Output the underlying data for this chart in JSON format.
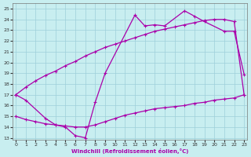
{
  "xlabel": "Windchill (Refroidissement éolien,°C)",
  "bg_color": "#c8eef0",
  "grid_color": "#9ecfda",
  "line_color": "#aa00aa",
  "xlim": [
    -0.3,
    23.3
  ],
  "ylim": [
    12.8,
    25.5
  ],
  "yticks": [
    13,
    14,
    15,
    16,
    17,
    18,
    19,
    20,
    21,
    22,
    23,
    24,
    25
  ],
  "xticks": [
    0,
    1,
    2,
    3,
    4,
    5,
    6,
    7,
    8,
    9,
    10,
    11,
    12,
    13,
    14,
    15,
    16,
    17,
    18,
    19,
    20,
    21,
    22,
    23
  ],
  "line1_x": [
    0,
    1,
    3,
    4,
    5,
    6,
    7,
    8,
    9,
    12,
    13,
    14,
    15,
    17,
    18,
    19,
    21,
    22,
    23
  ],
  "line1_y": [
    17.0,
    16.5,
    14.8,
    14.2,
    14.0,
    13.2,
    13.0,
    16.3,
    19.0,
    24.4,
    23.4,
    23.5,
    23.4,
    24.8,
    24.3,
    23.8,
    22.9,
    22.9,
    18.9
  ],
  "line2_x": [
    0,
    1,
    2,
    3,
    4,
    5,
    6,
    7,
    8,
    9,
    10,
    11,
    12,
    13,
    14,
    15,
    16,
    17,
    18,
    19,
    20,
    21,
    22,
    23
  ],
  "line2_y": [
    17.0,
    17.7,
    18.3,
    18.8,
    19.2,
    19.7,
    20.1,
    20.6,
    21.0,
    21.4,
    21.7,
    22.0,
    22.3,
    22.6,
    22.9,
    23.1,
    23.3,
    23.5,
    23.7,
    23.9,
    24.0,
    24.0,
    23.8,
    17.0
  ],
  "line3_x": [
    0,
    1,
    2,
    3,
    4,
    5,
    6,
    7,
    8,
    9,
    10,
    11,
    12,
    13,
    14,
    15,
    16,
    17,
    18,
    19,
    20,
    21,
    22,
    23
  ],
  "line3_y": [
    15.0,
    14.7,
    14.5,
    14.3,
    14.2,
    14.1,
    14.0,
    14.0,
    14.2,
    14.5,
    14.8,
    15.1,
    15.3,
    15.5,
    15.7,
    15.8,
    15.9,
    16.0,
    16.2,
    16.3,
    16.5,
    16.6,
    16.7,
    17.0
  ]
}
